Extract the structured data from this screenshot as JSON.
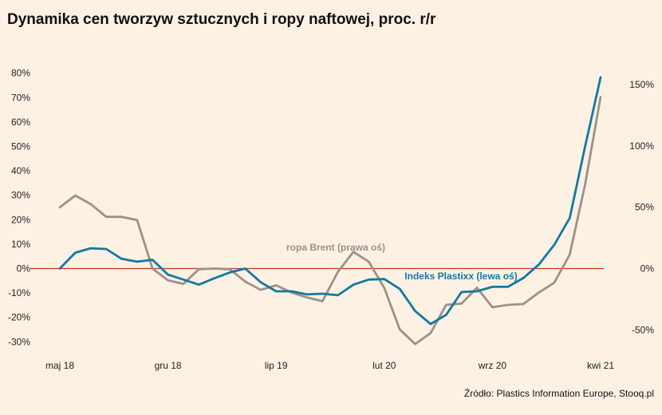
{
  "title": "Dynamika cen tworzyw sztucznych i ropy naftowej, proc. r/r",
  "source": "Źródło: Plastics Information Europe, Stooq.pl",
  "colors": {
    "plastixx": "#1478a0",
    "brent": "#9c9188",
    "zero_line": "#c0392b",
    "background": "#fdf1e4"
  },
  "chart_data": {
    "type": "line",
    "title": "Dynamika cen tworzyw sztucznych i ropy naftowej, proc. r/r",
    "x": [
      "2018-05",
      "2018-06",
      "2018-07",
      "2018-08",
      "2018-09",
      "2018-10",
      "2018-11",
      "2018-12",
      "2019-01",
      "2019-02",
      "2019-03",
      "2019-04",
      "2019-05",
      "2019-06",
      "2019-07",
      "2019-08",
      "2019-09",
      "2019-10",
      "2019-11",
      "2019-12",
      "2020-01",
      "2020-02",
      "2020-03",
      "2020-04",
      "2020-05",
      "2020-06",
      "2020-07",
      "2020-08",
      "2020-09",
      "2020-10",
      "2020-11",
      "2020-12",
      "2021-01",
      "2021-02",
      "2021-03",
      "2021-04"
    ],
    "x_tick_labels": [
      {
        "x": "2018-05",
        "label": "maj 18"
      },
      {
        "x": "2018-12",
        "label": "gru 18"
      },
      {
        "x": "2019-07",
        "label": "lip 19"
      },
      {
        "x": "2020-02",
        "label": "lut 20"
      },
      {
        "x": "2020-09",
        "label": "wrz 20"
      },
      {
        "x": "2021-04",
        "label": "kwi 21"
      }
    ],
    "left_axis": {
      "range": [
        -30,
        80
      ],
      "ticks": [
        "80%",
        "70%",
        "60%",
        "50%",
        "40%",
        "30%",
        "20%",
        "10%",
        "0%",
        "-10%",
        "-20%",
        "-30%"
      ]
    },
    "right_axis": {
      "range": [
        -50,
        150
      ],
      "ticks": [
        "150%",
        "100%",
        "50%",
        "0%",
        "-50%"
      ]
    },
    "series": [
      {
        "name": "Indeks Plastixx (lewa oś)",
        "axis": "left",
        "values": [
          0,
          6.5,
          8.3,
          8,
          4,
          2.8,
          3.6,
          -2.5,
          -4.5,
          -6.6,
          -4,
          -1.6,
          0,
          -5.6,
          -9.3,
          -9.3,
          -10.6,
          -10.3,
          -10.9,
          -6.6,
          -4.5,
          -4.3,
          -8.3,
          -17.4,
          -22.7,
          -19,
          -9.6,
          -9.3,
          -7.5,
          -7.5,
          -3.9,
          1.6,
          9.7,
          20.7,
          50,
          78.3
        ]
      },
      {
        "name": "ropa Brent (prawa oś)",
        "axis": "right",
        "values": [
          50,
          59.6,
          52.6,
          42.2,
          42.2,
          39.6,
          0,
          -9.6,
          -12.5,
          -0.5,
          0,
          -0.5,
          -10.6,
          -17.4,
          -13.7,
          -19.6,
          -23.6,
          -26.6,
          -2.6,
          13.6,
          5.6,
          -15.8,
          -49.6,
          -61.6,
          -52.6,
          -29.6,
          -28.6,
          -15.6,
          -31.6,
          -29.6,
          -29,
          -19.6,
          -11.6,
          11.4,
          68.6,
          140
        ]
      }
    ],
    "annotations": [
      {
        "text": "ropa Brent (prawa oś)",
        "series": "ropa Brent (prawa oś)"
      },
      {
        "text": "Indeks Plastixx (lewa oś)",
        "series": "Indeks Plastixx (lewa oś)"
      }
    ],
    "grid": false,
    "legend": "none"
  }
}
